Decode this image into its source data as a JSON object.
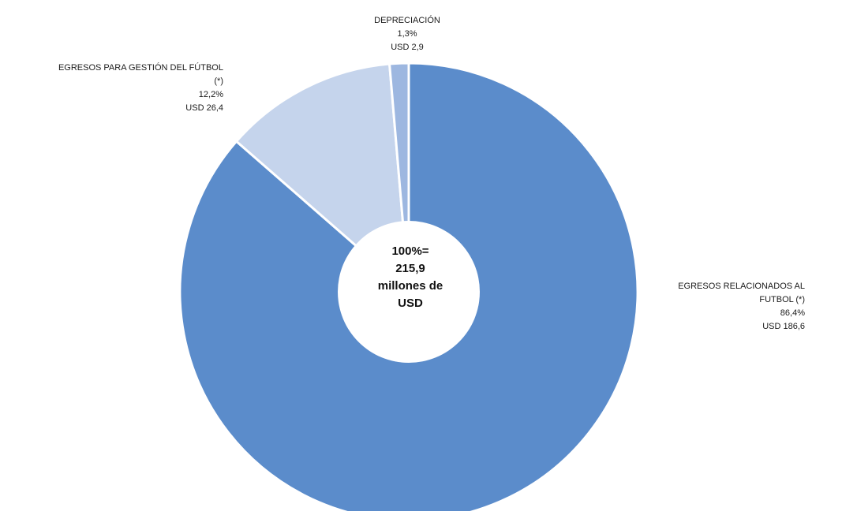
{
  "chart_data": {
    "type": "pie",
    "donut": true,
    "title": "",
    "center_lines": [
      "100%=",
      "215,9",
      "millones de",
      "USD"
    ],
    "slices": [
      {
        "name_lines": [
          "EGRESOS RELACIONADOS AL",
          "FUTBOL (*)"
        ],
        "percent_label": "86,4%",
        "amount_label": "USD 186,6",
        "value": 186.6,
        "percent": 86.4,
        "color": "#5b8ccb"
      },
      {
        "name_lines": [
          "EGRESOS PARA GESTIÓN DEL FÚTBOL",
          "(*)"
        ],
        "percent_label": "12,2%",
        "amount_label": "USD 26,4",
        "value": 26.4,
        "percent": 12.2,
        "color": "#c5d4ec"
      },
      {
        "name_lines": [
          "DEPRECIACIÓN"
        ],
        "percent_label": "1,3%",
        "amount_label": "USD 2,9",
        "value": 2.9,
        "percent": 1.3,
        "color": "#9db7e0"
      }
    ],
    "start_angle": "12 o'clock",
    "direction": "clockwise",
    "legend": "none",
    "background": "#ffffff",
    "hole_color": "#ffffff"
  }
}
